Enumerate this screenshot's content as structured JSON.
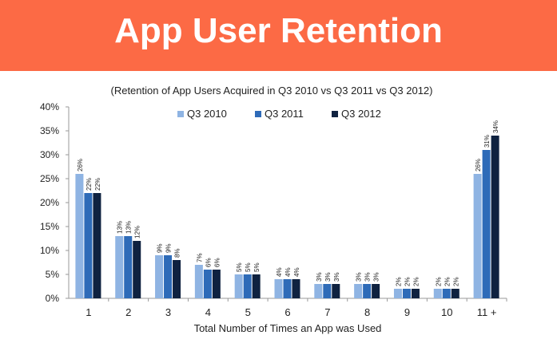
{
  "header": {
    "title": "App User Retention",
    "background": "#fc6a45"
  },
  "chart_data": {
    "type": "bar",
    "title": "(Retention of App Users Acquired in Q3 2010 vs Q3 2011 vs Q3 2012)",
    "xlabel": "Total Number of Times an App was Used",
    "ylabel": "",
    "ylim": [
      0,
      40
    ],
    "yticks": [
      "0%",
      "5%",
      "10%",
      "15%",
      "20%",
      "25%",
      "30%",
      "35%",
      "40%"
    ],
    "categories": [
      "1",
      "2",
      "3",
      "4",
      "5",
      "6",
      "7",
      "8",
      "9",
      "10",
      "11 +"
    ],
    "legend_position": "top",
    "grid": false,
    "series": [
      {
        "name": "Q3 2010",
        "color": "#8fb4e3",
        "values": [
          26,
          13,
          9,
          7,
          5,
          4,
          3,
          3,
          2,
          2,
          26
        ]
      },
      {
        "name": "Q3 2011",
        "color": "#2e6bb8",
        "values": [
          22,
          13,
          9,
          6,
          5,
          4,
          3,
          3,
          2,
          2,
          31
        ]
      },
      {
        "name": "Q3 2012",
        "color": "#0f2240",
        "values": [
          22,
          12,
          8,
          6,
          5,
          4,
          3,
          3,
          2,
          2,
          34
        ]
      }
    ]
  }
}
